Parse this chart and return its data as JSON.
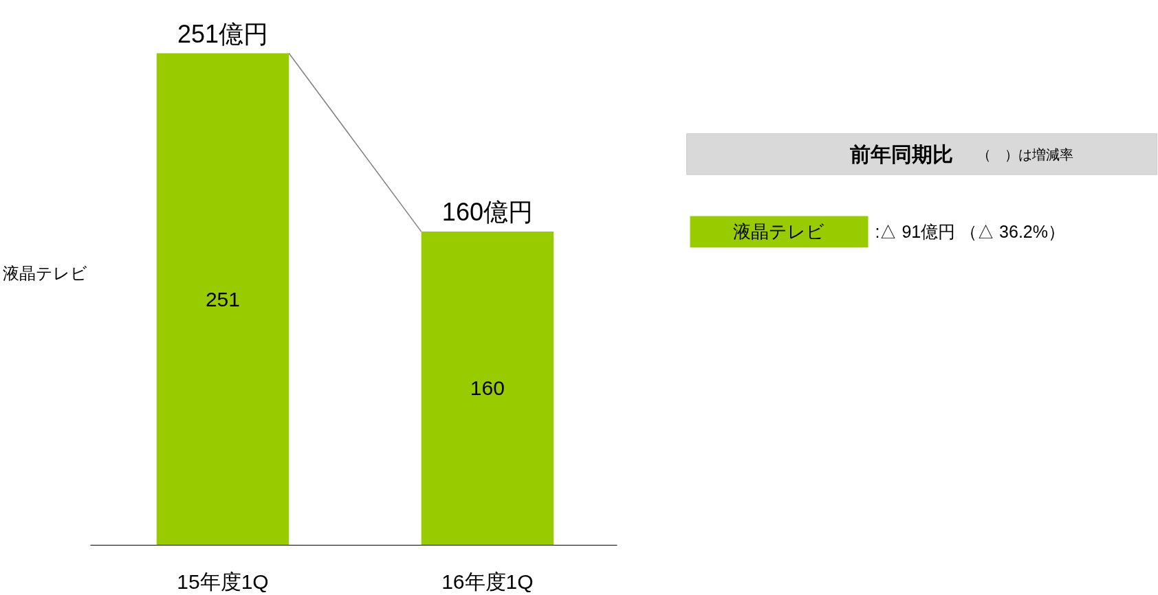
{
  "chart_data": {
    "type": "bar",
    "categories": [
      "15年度1Q",
      "16年度1Q"
    ],
    "series": [
      {
        "name": "液晶テレビ",
        "color": "#99cc00",
        "values": [
          251,
          160
        ]
      }
    ],
    "data_labels": true,
    "totals": [
      "251億円",
      "160億円"
    ],
    "ylabel": "液晶テレビ",
    "legend": "right",
    "annotations": [
      "前年同期比",
      "（　）は増減率",
      ":△ 91億円 （△ 36.2%）"
    ]
  }
}
